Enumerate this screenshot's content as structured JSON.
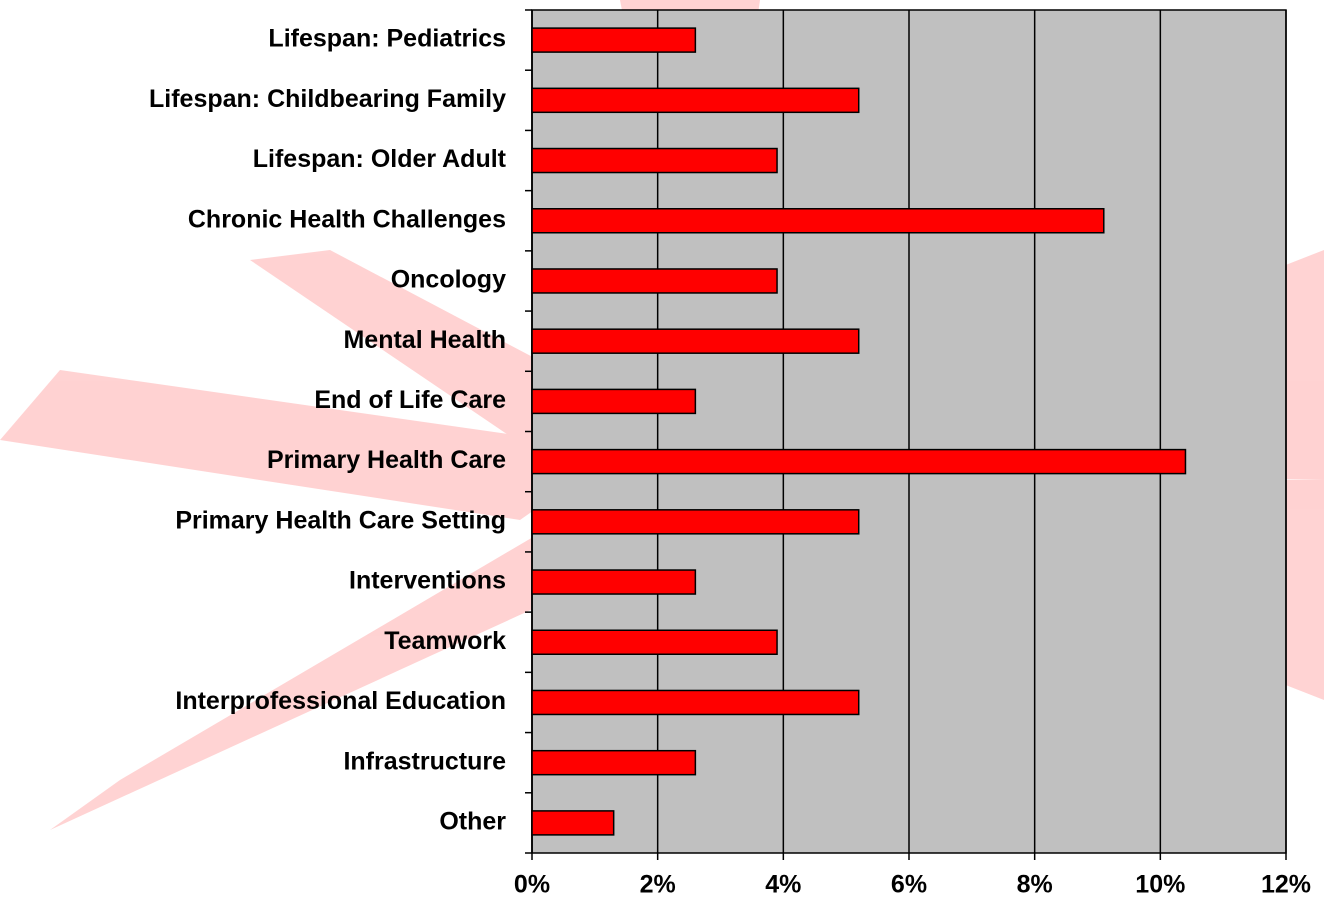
{
  "chart_data": {
    "type": "barh",
    "categories": [
      "Lifespan: Pediatrics",
      "Lifespan: Childbearing Family",
      "Lifespan: Older Adult",
      "Chronic Health Challenges",
      "Oncology",
      "Mental Health",
      "End of Life Care",
      "Primary Health Care",
      "Primary Health Care Setting",
      "Interventions",
      "Teamwork",
      "Interprofessional Education",
      "Infrastructure",
      "Other"
    ],
    "values": [
      2.6,
      5.2,
      3.9,
      9.1,
      3.9,
      5.2,
      2.6,
      10.4,
      5.2,
      2.6,
      3.9,
      5.2,
      2.6,
      1.3
    ],
    "color": "#ff0000",
    "xlim": [
      0,
      12
    ],
    "xticks": [
      {
        "value": 0,
        "label": "0%"
      },
      {
        "value": 2,
        "label": "2%"
      },
      {
        "value": 4,
        "label": "4%"
      },
      {
        "value": 6,
        "label": "6%"
      },
      {
        "value": 8,
        "label": "8%"
      },
      {
        "value": 10,
        "label": "10%"
      },
      {
        "value": 12,
        "label": "12%"
      }
    ],
    "grid": true
  }
}
